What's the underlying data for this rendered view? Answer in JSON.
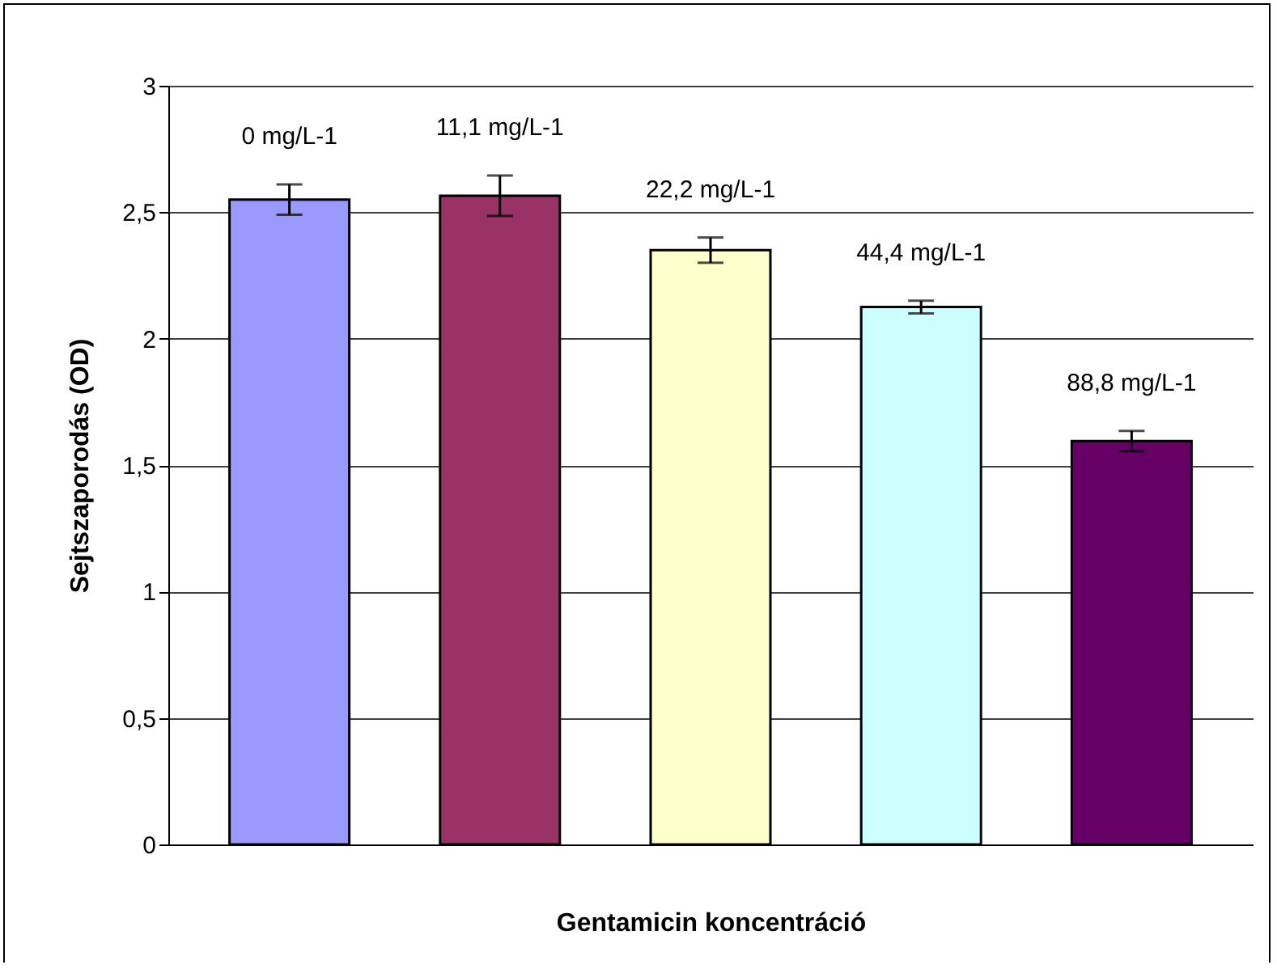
{
  "chart_data": {
    "type": "bar",
    "xlabel": "Gentamicin koncentráció",
    "ylabel": "Sejtszaporodás (OD)",
    "categories": [
      "0 mg/L-1",
      "11,1 mg/L-1",
      "22,2 mg/L-1",
      "44,4 mg/L-1",
      "88,8 mg/L-1"
    ],
    "values": [
      2.55,
      2.565,
      2.35,
      2.125,
      1.595
    ],
    "errors": [
      0.06,
      0.08,
      0.05,
      0.025,
      0.04
    ],
    "colors": [
      "#9999ff",
      "#993366",
      "#ffffcc",
      "#ccffff",
      "#660066"
    ],
    "ylim": [
      0,
      3
    ],
    "yticks": [
      0,
      {
        "value": 0.5,
        "label": "0,5"
      },
      1,
      {
        "value": 1.5,
        "label": "1,5"
      },
      2,
      {
        "value": 2.5,
        "label": "2,5"
      },
      3
    ],
    "grid": "y",
    "legend": false,
    "tick_labels": "y"
  }
}
